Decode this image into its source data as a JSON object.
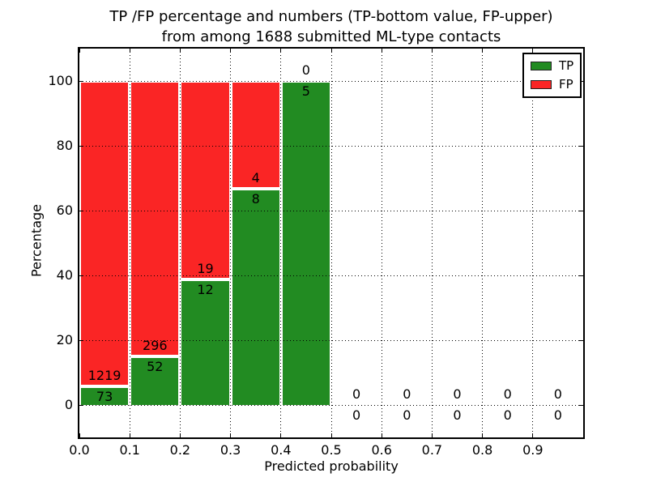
{
  "title": {
    "line1": "TP /FP percentage and numbers (TP-bottom value, FP-upper)",
    "line2": "from among 1688 submitted ML-type contacts"
  },
  "chart_data": {
    "type": "bar",
    "stacked": true,
    "title": "TP /FP percentage and numbers (TP-bottom value, FP-upper) from among 1688 submitted ML-type contacts",
    "xlabel": "Predicted probability",
    "ylabel": "Percentage",
    "xlim": [
      0.0,
      1.0
    ],
    "ylim": [
      -10,
      110
    ],
    "x_tick_labels": [
      "0.0",
      "0.1",
      "0.2",
      "0.3",
      "0.4",
      "0.5",
      "0.6",
      "0.7",
      "0.8",
      "0.9"
    ],
    "y_tick_values": [
      0,
      20,
      40,
      60,
      80,
      100
    ],
    "grid": true,
    "legend_position": "upper right",
    "total_contacts": 1688,
    "bin_width": 0.1,
    "bins": [
      {
        "x_start": 0.0,
        "x_end": 0.1,
        "tp": 73,
        "fp": 1219,
        "tp_pct": 5.65
      },
      {
        "x_start": 0.1,
        "x_end": 0.2,
        "tp": 52,
        "fp": 296,
        "tp_pct": 14.94
      },
      {
        "x_start": 0.2,
        "x_end": 0.3,
        "tp": 12,
        "fp": 19,
        "tp_pct": 38.71
      },
      {
        "x_start": 0.3,
        "x_end": 0.4,
        "tp": 8,
        "fp": 4,
        "tp_pct": 66.67
      },
      {
        "x_start": 0.4,
        "x_end": 0.5,
        "tp": 5,
        "fp": 0,
        "tp_pct": 100.0
      },
      {
        "x_start": 0.5,
        "x_end": 0.6,
        "tp": 0,
        "fp": 0,
        "tp_pct": null
      },
      {
        "x_start": 0.6,
        "x_end": 0.7,
        "tp": 0,
        "fp": 0,
        "tp_pct": null
      },
      {
        "x_start": 0.7,
        "x_end": 0.8,
        "tp": 0,
        "fp": 0,
        "tp_pct": null
      },
      {
        "x_start": 0.8,
        "x_end": 0.9,
        "tp": 0,
        "fp": 0,
        "tp_pct": null
      },
      {
        "x_start": 0.9,
        "x_end": 1.0,
        "tp": 0,
        "fp": 0,
        "tp_pct": null
      }
    ],
    "series": [
      {
        "name": "TP",
        "color": "#228b22",
        "values": [
          73,
          52,
          12,
          8,
          5,
          0,
          0,
          0,
          0,
          0
        ]
      },
      {
        "name": "FP",
        "color": "#fa2525",
        "values": [
          1219,
          296,
          19,
          4,
          0,
          0,
          0,
          0,
          0,
          0
        ]
      }
    ],
    "legend": [
      {
        "label": "TP",
        "color": "#228b22"
      },
      {
        "label": "FP",
        "color": "#fa2525"
      }
    ]
  },
  "colors": {
    "tp_green": "#228b22",
    "fp_red": "#fa2525",
    "grid": "#000000",
    "background": "#ffffff"
  }
}
